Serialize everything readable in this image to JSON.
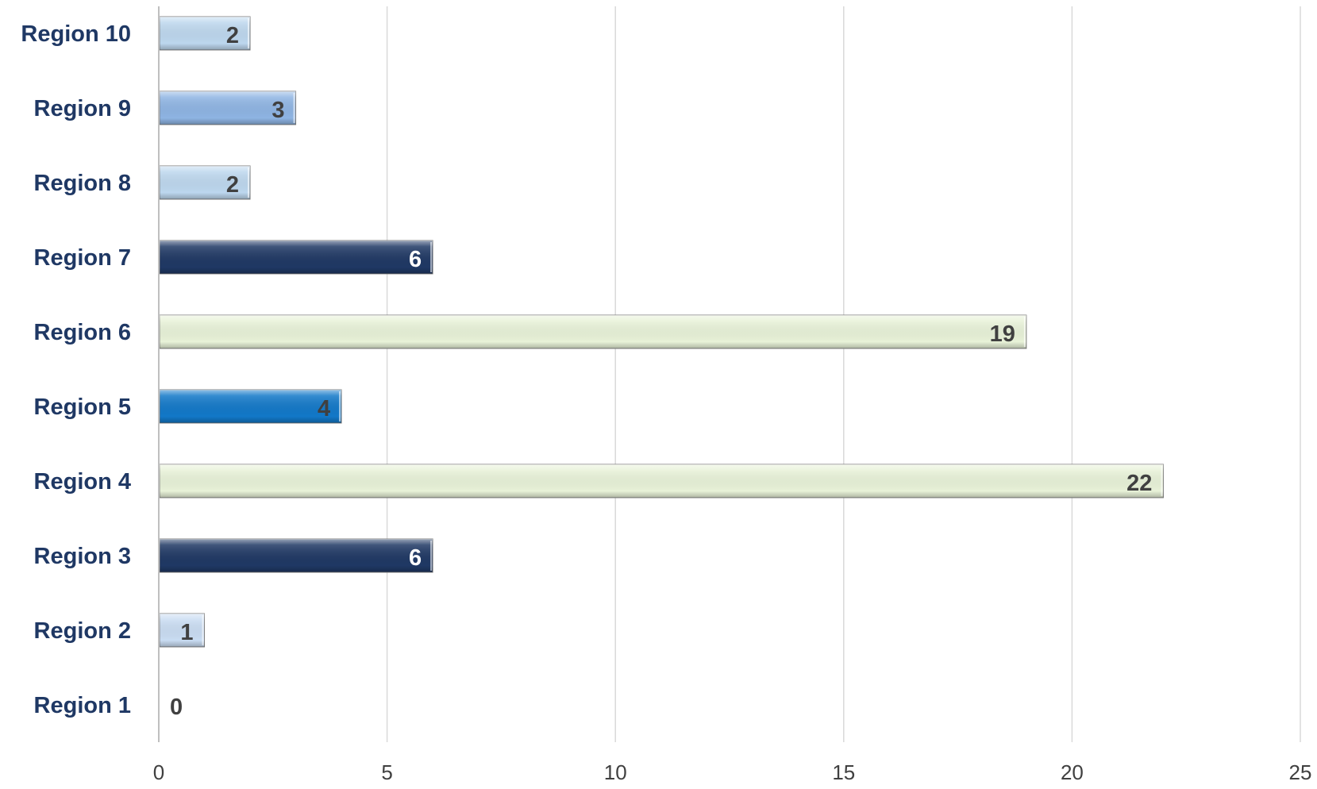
{
  "chart_data": {
    "type": "bar",
    "orientation": "horizontal",
    "categories": [
      "Region 1",
      "Region 2",
      "Region 3",
      "Region 4",
      "Region 5",
      "Region 6",
      "Region 7",
      "Region 8",
      "Region 9",
      "Region 10"
    ],
    "values": [
      0,
      1,
      6,
      22,
      4,
      19,
      6,
      2,
      3,
      2
    ],
    "bar_colors": [
      "#BDD7EE",
      "#C9DCF2",
      "#1F3864",
      "#E8F2D8",
      "#1278C8",
      "#E8F2D8",
      "#1F3864",
      "#BDD7EE",
      "#8EB4E3",
      "#BDD7EE"
    ],
    "label_colors": [
      "#404040",
      "#404040",
      "#FFFFFF",
      "#404040",
      "#404040",
      "#404040",
      "#FFFFFF",
      "#404040",
      "#404040",
      "#404040"
    ],
    "xlim": [
      0,
      25
    ],
    "x_ticks": [
      0,
      5,
      10,
      15,
      20,
      25
    ],
    "title": "",
    "xlabel": "",
    "ylabel": "",
    "grid": "vertical",
    "legend": "none",
    "data_labels": true
  }
}
